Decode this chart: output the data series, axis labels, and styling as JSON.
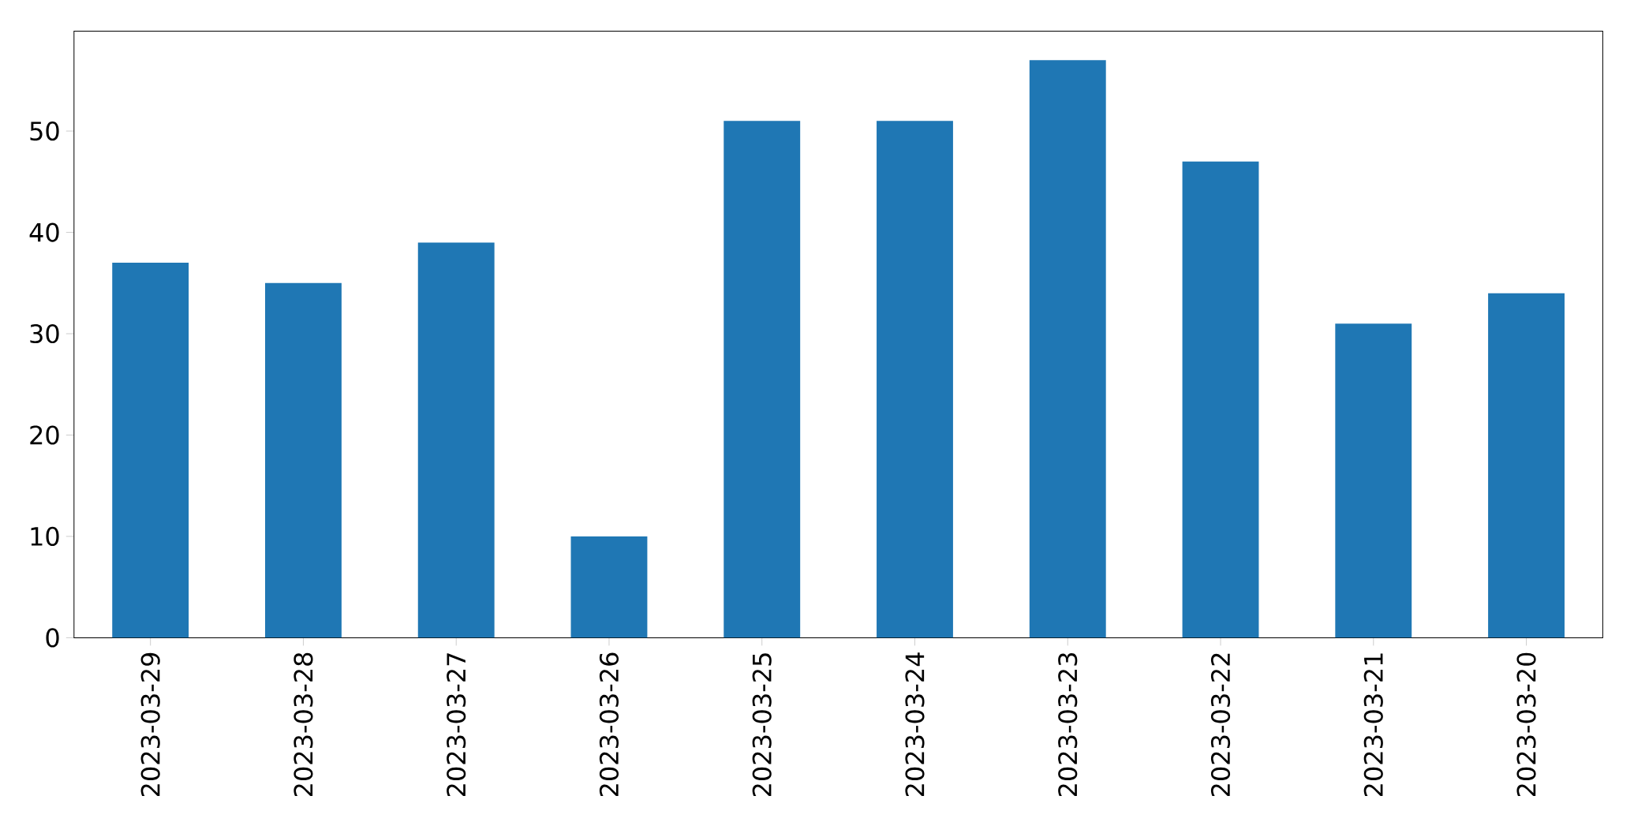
{
  "chart_data": {
    "type": "bar",
    "categories": [
      "2023-03-29",
      "2023-03-28",
      "2023-03-27",
      "2023-03-26",
      "2023-03-25",
      "2023-03-24",
      "2023-03-23",
      "2023-03-22",
      "2023-03-21",
      "2023-03-20"
    ],
    "values": [
      37,
      35,
      39,
      10,
      51,
      51,
      57,
      47,
      31,
      34
    ],
    "color": "#1f77b4",
    "ylim": [
      0,
      59.85
    ],
    "yticks": [
      0,
      10,
      20,
      30,
      40,
      50
    ]
  }
}
